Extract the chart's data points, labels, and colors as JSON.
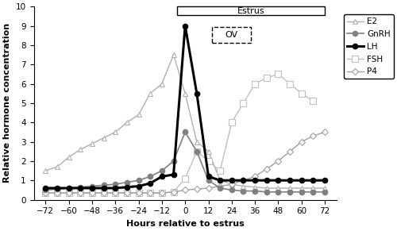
{
  "hours": [
    -72,
    -66,
    -60,
    -54,
    -48,
    -42,
    -36,
    -30,
    -24,
    -18,
    -12,
    -6,
    0,
    6,
    12,
    18,
    24,
    30,
    36,
    42,
    48,
    54,
    60,
    66,
    72
  ],
  "E2": [
    1.5,
    1.7,
    2.2,
    2.6,
    2.9,
    3.2,
    3.5,
    4.0,
    4.4,
    5.5,
    6.0,
    7.5,
    5.5,
    3.0,
    2.5,
    1.0,
    0.8,
    0.7,
    0.65,
    0.6,
    0.6,
    0.6,
    0.6,
    0.6,
    0.6
  ],
  "GnRH": [
    0.5,
    0.55,
    0.6,
    0.65,
    0.7,
    0.75,
    0.8,
    0.9,
    1.0,
    1.2,
    1.5,
    2.0,
    3.5,
    2.5,
    1.0,
    0.6,
    0.5,
    0.45,
    0.45,
    0.4,
    0.4,
    0.4,
    0.4,
    0.4,
    0.4
  ],
  "LH": [
    0.6,
    0.6,
    0.6,
    0.6,
    0.6,
    0.6,
    0.6,
    0.65,
    0.7,
    0.85,
    1.2,
    1.3,
    9.0,
    5.5,
    1.2,
    1.0,
    1.0,
    1.0,
    1.0,
    1.0,
    1.0,
    1.0,
    1.0,
    1.0,
    1.0
  ],
  "FSH_hours": [
    -72,
    -66,
    -60,
    -54,
    -48,
    -42,
    -36,
    -30,
    -24,
    -18,
    -12,
    -6,
    0,
    6,
    12,
    18,
    24,
    30,
    36,
    42,
    48,
    54,
    60,
    66,
    72
  ],
  "FSH_vals": [
    0.35,
    0.35,
    0.35,
    0.35,
    0.35,
    0.35,
    0.35,
    0.35,
    0.35,
    0.35,
    0.35,
    0.4,
    1.1,
    2.5,
    2.0,
    1.5,
    4.0,
    5.0,
    6.0,
    6.3,
    6.5,
    6.0,
    5.5,
    5.1,
    null
  ],
  "P4": [
    0.35,
    0.35,
    0.35,
    0.35,
    0.35,
    0.35,
    0.35,
    0.35,
    0.35,
    0.35,
    0.35,
    0.4,
    0.5,
    0.55,
    0.6,
    0.7,
    0.8,
    1.0,
    1.2,
    1.6,
    2.0,
    2.5,
    3.0,
    3.3,
    3.5
  ],
  "xlim": [
    -78,
    78
  ],
  "ylim": [
    0,
    10
  ],
  "xticks": [
    -72,
    -60,
    -48,
    -36,
    -24,
    -12,
    0,
    12,
    24,
    36,
    48,
    60,
    72
  ],
  "yticks": [
    0,
    1,
    2,
    3,
    4,
    5,
    6,
    7,
    8,
    9,
    10
  ],
  "xlabel": "Hours relative to estrus",
  "ylabel": "Relative hormone concentration",
  "colors": {
    "E2": "#b0b0b0",
    "GnRH": "#808080",
    "LH": "#000000",
    "FSH": "#c0c0c0",
    "P4": "#a0a0a0"
  },
  "estrus_label": "Estrus",
  "ov_label": "OV",
  "figsize": [
    5.0,
    2.91
  ],
  "dpi": 100
}
